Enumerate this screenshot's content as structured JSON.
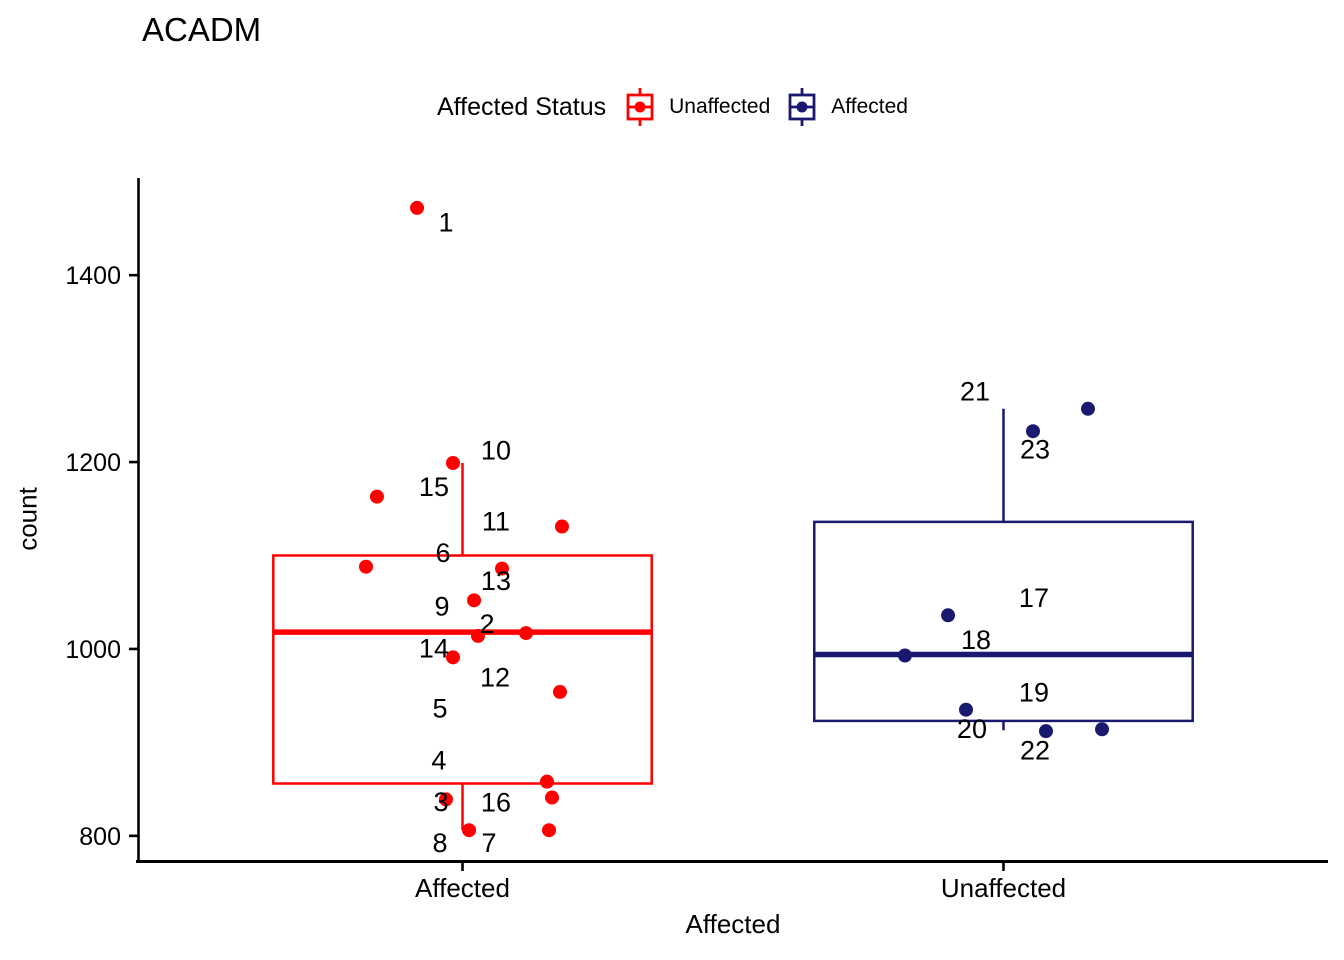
{
  "chart_data": {
    "type": "boxplot",
    "title": "ACADM",
    "xlabel": "Affected",
    "ylabel": "count",
    "legend_title": "Affected Status",
    "legend": [
      {
        "label": "Unaffected",
        "color": "#FF0000"
      },
      {
        "label": "Affected",
        "color": "#191970"
      }
    ],
    "x_categories": [
      "Affected",
      "Unaffected"
    ],
    "y_ticks": [
      800,
      1000,
      1200,
      1400
    ],
    "y_domain": [
      772,
      1504
    ],
    "axis_color": "#000000",
    "grid": false,
    "legend_position": "top",
    "groups": [
      {
        "category": "Affected",
        "status": "Unaffected",
        "color": "#FF0000",
        "x_center": 0.2727,
        "box_half_width": 0.159,
        "box": {
          "q1": 856,
          "median": 1018,
          "q3": 1100,
          "whisker_low": 806,
          "whisker_high": 1199
        },
        "points": [
          {
            "id": "1",
            "x": 0.2345,
            "value": 1472,
            "label_x": 0.2588,
            "label_value": 1457
          },
          {
            "id": "2",
            "x": 0.2857,
            "value": 1014,
            "label_x": 0.2933,
            "label_value": 1027
          },
          {
            "id": "3",
            "x": 0.2588,
            "value": 839,
            "label_x": 0.2546,
            "label_value": 837
          },
          {
            "id": "4",
            "x": 0.3437,
            "value": 858,
            "label_x": 0.2529,
            "label_value": 881
          },
          {
            "id": "5",
            "x": 0.3261,
            "value": 1017,
            "label_x": 0.2538,
            "label_value": 937
          },
          {
            "id": "6",
            "x": 0.1916,
            "value": 1088,
            "label_x": 0.2563,
            "label_value": 1103
          },
          {
            "id": "7",
            "x": 0.3454,
            "value": 806,
            "label_x": 0.295,
            "label_value": 793
          },
          {
            "id": "8",
            "x": 0.2782,
            "value": 806,
            "label_x": 0.2538,
            "label_value": 793
          },
          {
            "id": "9",
            "x": 0.2824,
            "value": 1052,
            "label_x": 0.2555,
            "label_value": 1046
          },
          {
            "id": "10",
            "x": 0.2647,
            "value": 1199,
            "label_x": 0.3008,
            "label_value": 1213
          },
          {
            "id": "11",
            "x": 0.3563,
            "value": 1131,
            "label_x": 0.3008,
            "label_value": 1137
          },
          {
            "id": "12",
            "x": 0.3546,
            "value": 954,
            "label_x": 0.3,
            "label_value": 970
          },
          {
            "id": "13",
            "x": 0.3059,
            "value": 1086,
            "label_x": 0.3008,
            "label_value": 1073
          },
          {
            "id": "14",
            "x": 0.2647,
            "value": 991,
            "label_x": 0.2487,
            "label_value": 1001
          },
          {
            "id": "15",
            "x": 0.2008,
            "value": 1163,
            "label_x": 0.2487,
            "label_value": 1174
          },
          {
            "id": "16",
            "x": 0.3479,
            "value": 841,
            "label_x": 0.3008,
            "label_value": 836
          }
        ]
      },
      {
        "category": "Unaffected",
        "status": "Affected",
        "color": "#191970",
        "x_center": 0.7273,
        "box_half_width": 0.159,
        "box": {
          "q1": 923,
          "median": 994,
          "q3": 1136,
          "whisker_low": 913,
          "whisker_high": 1257
        },
        "points": [
          {
            "id": "17",
            "x": 0.6807,
            "value": 1036,
            "label_x": 0.7529,
            "label_value": 1055
          },
          {
            "id": "18",
            "x": 0.6445,
            "value": 993,
            "label_x": 0.7042,
            "label_value": 1010
          },
          {
            "id": "19",
            "x": 0.8101,
            "value": 914,
            "label_x": 0.7529,
            "label_value": 954
          },
          {
            "id": "20",
            "x": 0.6958,
            "value": 935,
            "label_x": 0.7008,
            "label_value": 915
          },
          {
            "id": "21",
            "x": 0.7983,
            "value": 1257,
            "label_x": 0.7034,
            "label_value": 1276
          },
          {
            "id": "22",
            "x": 0.763,
            "value": 912,
            "label_x": 0.7538,
            "label_value": 892
          },
          {
            "id": "23",
            "x": 0.7521,
            "value": 1233,
            "label_x": 0.7538,
            "label_value": 1214
          }
        ]
      }
    ]
  }
}
